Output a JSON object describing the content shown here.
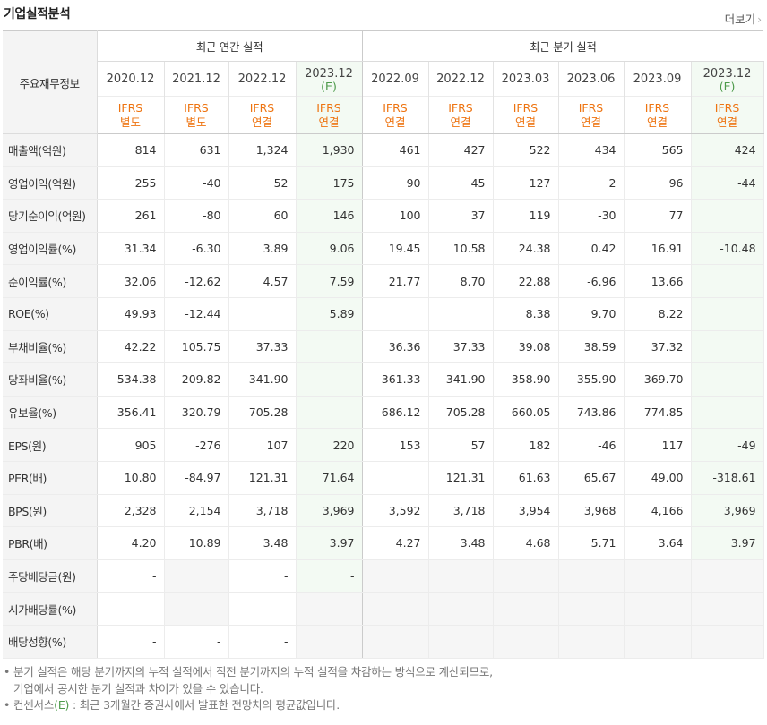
{
  "header": {
    "title": "기업실적분석",
    "more_label": "더보기",
    "more_icon": "chevron-right-icon"
  },
  "table": {
    "corner_label": "주요재무정보",
    "group_annual": "최근 연간 실적",
    "group_quarter": "최근 분기 실적",
    "periods": [
      {
        "date": "2020.12",
        "est": "",
        "acc1": "IFRS",
        "acc2": "별도",
        "estimate": false
      },
      {
        "date": "2021.12",
        "est": "",
        "acc1": "IFRS",
        "acc2": "별도",
        "estimate": false
      },
      {
        "date": "2022.12",
        "est": "",
        "acc1": "IFRS",
        "acc2": "연결",
        "estimate": false
      },
      {
        "date": "2023.12",
        "est": "(E)",
        "acc1": "IFRS",
        "acc2": "연결",
        "estimate": true
      },
      {
        "date": "2022.09",
        "est": "",
        "acc1": "IFRS",
        "acc2": "연결",
        "estimate": false
      },
      {
        "date": "2022.12",
        "est": "",
        "acc1": "IFRS",
        "acc2": "연결",
        "estimate": false
      },
      {
        "date": "2023.03",
        "est": "",
        "acc1": "IFRS",
        "acc2": "연결",
        "estimate": false
      },
      {
        "date": "2023.06",
        "est": "",
        "acc1": "IFRS",
        "acc2": "연결",
        "estimate": false
      },
      {
        "date": "2023.09",
        "est": "",
        "acc1": "IFRS",
        "acc2": "연결",
        "estimate": false
      },
      {
        "date": "2023.12",
        "est": "(E)",
        "acc1": "IFRS",
        "acc2": "연결",
        "estimate": true
      }
    ],
    "rows": [
      {
        "label": "매출액(억원)",
        "values": [
          "814",
          "631",
          "1,324",
          "1,930",
          "461",
          "427",
          "522",
          "434",
          "565",
          "424"
        ],
        "group_start": false
      },
      {
        "label": "영업이익(억원)",
        "values": [
          "255",
          "-40",
          "52",
          "175",
          "90",
          "45",
          "127",
          "2",
          "96",
          "-44"
        ],
        "group_start": false
      },
      {
        "label": "당기순이익(억원)",
        "values": [
          "261",
          "-80",
          "60",
          "146",
          "100",
          "37",
          "119",
          "-30",
          "77",
          ""
        ],
        "group_start": false
      },
      {
        "label": "영업이익률(%)",
        "values": [
          "31.34",
          "-6.30",
          "3.89",
          "9.06",
          "19.45",
          "10.58",
          "24.38",
          "0.42",
          "16.91",
          "-10.48"
        ],
        "group_start": true
      },
      {
        "label": "순이익률(%)",
        "values": [
          "32.06",
          "-12.62",
          "4.57",
          "7.59",
          "21.77",
          "8.70",
          "22.88",
          "-6.96",
          "13.66",
          ""
        ],
        "group_start": false
      },
      {
        "label": "ROE(%)",
        "values": [
          "49.93",
          "-12.44",
          "",
          "5.89",
          "",
          "",
          "8.38",
          "9.70",
          "8.22",
          ""
        ],
        "group_start": false
      },
      {
        "label": "부채비율(%)",
        "values": [
          "42.22",
          "105.75",
          "37.33",
          "",
          "36.36",
          "37.33",
          "39.08",
          "38.59",
          "37.32",
          ""
        ],
        "group_start": true
      },
      {
        "label": "당좌비율(%)",
        "values": [
          "534.38",
          "209.82",
          "341.90",
          "",
          "361.33",
          "341.90",
          "358.90",
          "355.90",
          "369.70",
          ""
        ],
        "group_start": false
      },
      {
        "label": "유보율(%)",
        "values": [
          "356.41",
          "320.79",
          "705.28",
          "",
          "686.12",
          "705.28",
          "660.05",
          "743.86",
          "774.85",
          ""
        ],
        "group_start": false
      },
      {
        "label": "EPS(원)",
        "values": [
          "905",
          "-276",
          "107",
          "220",
          "153",
          "57",
          "182",
          "-46",
          "117",
          "-49"
        ],
        "group_start": true
      },
      {
        "label": "PER(배)",
        "values": [
          "10.80",
          "-84.97",
          "121.31",
          "71.64",
          "",
          "121.31",
          "61.63",
          "65.67",
          "49.00",
          "-318.61"
        ],
        "group_start": false
      },
      {
        "label": "BPS(원)",
        "values": [
          "2,328",
          "2,154",
          "3,718",
          "3,969",
          "3,592",
          "3,718",
          "3,954",
          "3,968",
          "4,166",
          "3,969"
        ],
        "group_start": false
      },
      {
        "label": "PBR(배)",
        "values": [
          "4.20",
          "10.89",
          "3.48",
          "3.97",
          "4.27",
          "3.48",
          "4.68",
          "5.71",
          "3.64",
          "3.97"
        ],
        "group_start": false
      },
      {
        "label": "주당배당금(원)",
        "values": [
          "-",
          "",
          "-",
          "-",
          "",
          "",
          "",
          "",
          "",
          ""
        ],
        "gray": [
          false,
          true,
          false,
          false,
          true,
          true,
          true,
          true,
          true,
          true
        ],
        "group_start": true
      },
      {
        "label": "시가배당률(%)",
        "values": [
          "-",
          "",
          "-",
          "",
          "",
          "",
          "",
          "",
          "",
          ""
        ],
        "gray": [
          false,
          true,
          false,
          true,
          true,
          true,
          true,
          true,
          true,
          true
        ],
        "group_start": false
      },
      {
        "label": "배당성향(%)",
        "values": [
          "-",
          "-",
          "-",
          "",
          "",
          "",
          "",
          "",
          "",
          ""
        ],
        "gray": [
          false,
          false,
          false,
          true,
          true,
          true,
          true,
          true,
          true,
          true
        ],
        "group_start": false
      }
    ]
  },
  "notes": {
    "line1": "분기 실적은 해당 분기까지의 누적 실적에서 직전 분기까지의 누적 실적을 차감하는 방식으로 계산되므로,",
    "line2": "기업에서 공시한 분기 실적과 차이가 있을 수 있습니다.",
    "line3_pre": "컨센서스",
    "line3_e": "(E)",
    "line3_post": " : 최근 3개월간 증권사에서 발표한 전망치의 평균값입니다."
  },
  "colors": {
    "negative": "#e0221b",
    "accounting": "#ee7411",
    "estimate": "#4c9a4a"
  }
}
